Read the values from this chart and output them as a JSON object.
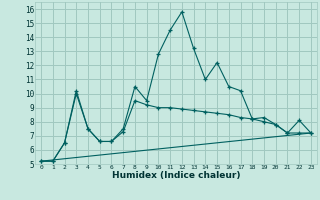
{
  "title": "",
  "xlabel": "Humidex (Indice chaleur)",
  "bg_color": "#c8e8e0",
  "grid_color": "#a0c8c0",
  "line_color": "#006060",
  "xlim": [
    -0.5,
    23.5
  ],
  "ylim": [
    5,
    16.5
  ],
  "xticks": [
    0,
    1,
    2,
    3,
    4,
    5,
    6,
    7,
    8,
    9,
    10,
    11,
    12,
    13,
    14,
    15,
    16,
    17,
    18,
    19,
    20,
    21,
    22,
    23
  ],
  "yticks": [
    5,
    6,
    7,
    8,
    9,
    10,
    11,
    12,
    13,
    14,
    15,
    16
  ],
  "line1_x": [
    0,
    1,
    2,
    3,
    4,
    5,
    6,
    7,
    8,
    9,
    10,
    11,
    12,
    13,
    14,
    15,
    16,
    17,
    18,
    19,
    20,
    21,
    22,
    23
  ],
  "line1_y": [
    5.2,
    5.2,
    6.5,
    10.2,
    7.5,
    6.6,
    6.6,
    7.5,
    10.5,
    9.5,
    12.8,
    14.5,
    15.8,
    13.2,
    11.0,
    12.2,
    10.5,
    10.2,
    8.2,
    8.3,
    7.8,
    7.2,
    8.1,
    7.2
  ],
  "line2_x": [
    0,
    1,
    2,
    3,
    4,
    5,
    6,
    7,
    8,
    9,
    10,
    11,
    12,
    13,
    14,
    15,
    16,
    17,
    18,
    19,
    20,
    21,
    22,
    23
  ],
  "line2_y": [
    5.2,
    5.2,
    6.5,
    10.0,
    7.5,
    6.6,
    6.6,
    7.3,
    9.5,
    9.2,
    9.0,
    9.0,
    8.9,
    8.8,
    8.7,
    8.6,
    8.5,
    8.3,
    8.2,
    8.0,
    7.8,
    7.2,
    7.2,
    7.2
  ],
  "line3_x": [
    0,
    23
  ],
  "line3_y": [
    5.2,
    7.2
  ]
}
